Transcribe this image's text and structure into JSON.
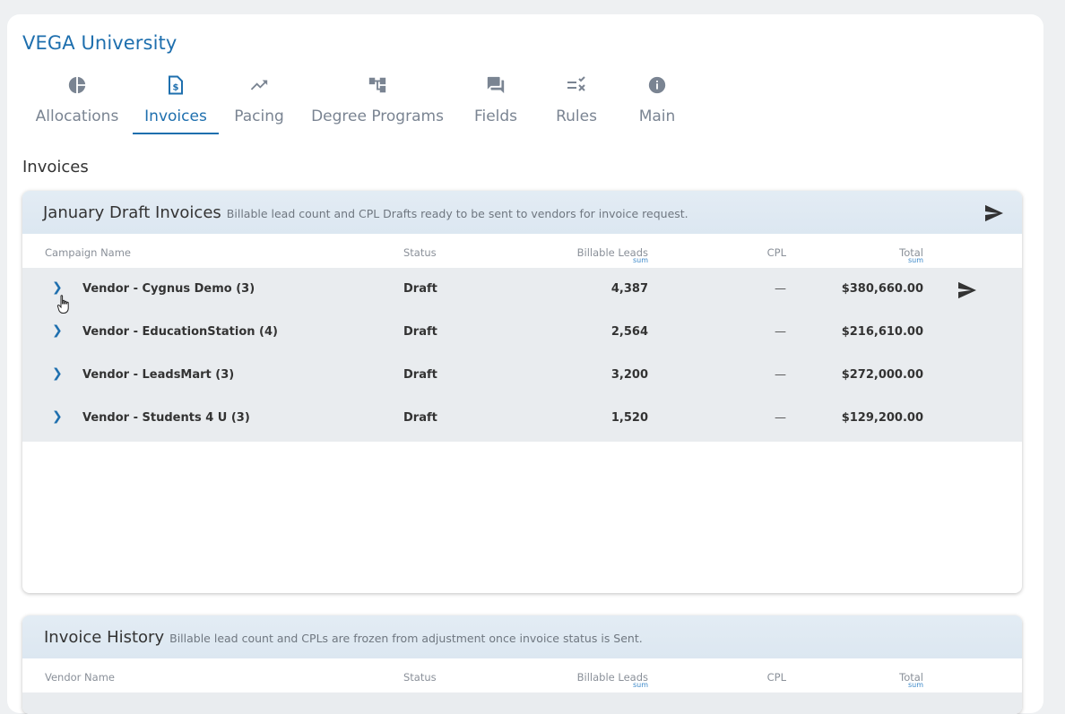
{
  "app": {
    "title": "VEGA University"
  },
  "tabs": [
    {
      "label": "Allocations",
      "icon": "pie-chart-icon",
      "active": false
    },
    {
      "label": "Invoices",
      "icon": "invoice-icon",
      "active": true
    },
    {
      "label": "Pacing",
      "icon": "trending-up-icon",
      "active": false
    },
    {
      "label": "Degree Programs",
      "icon": "hierarchy-icon",
      "active": false
    },
    {
      "label": "Fields",
      "icon": "chat-icon",
      "active": false
    },
    {
      "label": "Rules",
      "icon": "rules-icon",
      "active": false
    },
    {
      "label": "Main",
      "icon": "info-icon",
      "active": false
    }
  ],
  "section": {
    "title": "Invoices"
  },
  "draft": {
    "title": "January Draft Invoices",
    "subtitle": "Billable lead count and CPL Drafts ready to be sent to vendors for invoice request.",
    "columns": {
      "name": "Campaign Name",
      "status": "Status",
      "leads": "Billable Leads",
      "leads_sum": "sum",
      "cpl": "CPL",
      "total": "Total",
      "total_sum": "sum"
    },
    "rows": [
      {
        "name": "Vendor - Cygnus Demo (3)",
        "status": "Draft",
        "leads": "4,387",
        "cpl": "—",
        "total": "$380,660.00"
      },
      {
        "name": "Vendor - EducationStation (4)",
        "status": "Draft",
        "leads": "2,564",
        "cpl": "—",
        "total": "$216,610.00"
      },
      {
        "name": "Vendor - LeadsMart (3)",
        "status": "Draft",
        "leads": "3,200",
        "cpl": "—",
        "total": "$272,000.00"
      },
      {
        "name": "Vendor - Students 4 U (3)",
        "status": "Draft",
        "leads": "1,520",
        "cpl": "—",
        "total": "$129,200.00"
      }
    ]
  },
  "history": {
    "title": "Invoice History",
    "subtitle": "Billable lead count and CPLs are frozen from adjustment once invoice status is Sent.",
    "columns": {
      "name": "Vendor Name",
      "status": "Status",
      "leads": "Billable Leads",
      "leads_sum": "sum",
      "cpl": "CPL",
      "total": "Total",
      "total_sum": "sum"
    }
  },
  "colors": {
    "accent": "#1e6fae",
    "header_bg": "#dce7f1",
    "row_bg": "#e9ecef"
  }
}
